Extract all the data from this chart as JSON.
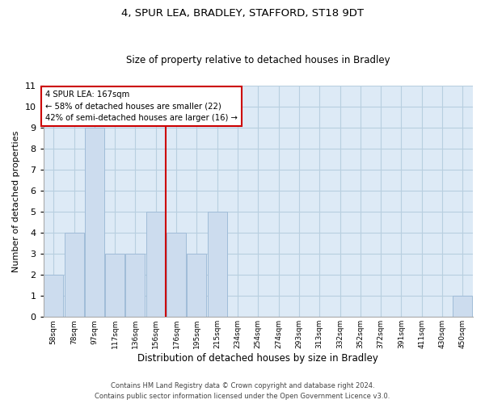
{
  "title_line1": "4, SPUR LEA, BRADLEY, STAFFORD, ST18 9DT",
  "title_line2": "Size of property relative to detached houses in Bradley",
  "xlabel": "Distribution of detached houses by size in Bradley",
  "ylabel": "Number of detached properties",
  "categories": [
    "58sqm",
    "78sqm",
    "97sqm",
    "117sqm",
    "136sqm",
    "156sqm",
    "176sqm",
    "195sqm",
    "215sqm",
    "234sqm",
    "254sqm",
    "274sqm",
    "293sqm",
    "313sqm",
    "332sqm",
    "352sqm",
    "372sqm",
    "391sqm",
    "411sqm",
    "430sqm",
    "450sqm"
  ],
  "values": [
    2,
    4,
    9,
    3,
    3,
    5,
    4,
    3,
    5,
    0,
    0,
    0,
    0,
    0,
    0,
    0,
    0,
    0,
    0,
    0,
    1
  ],
  "bar_color": "#ccdcee",
  "bar_edge_color": "#a0bcd8",
  "grid_color": "#b8cfe0",
  "background_color": "#ddeaf6",
  "ref_line_index": 5.5,
  "ref_line_color": "#cc0000",
  "annotation_text": "4 SPUR LEA: 167sqm\n← 58% of detached houses are smaller (22)\n42% of semi-detached houses are larger (16) →",
  "annotation_box_color": "#cc0000",
  "ylim": [
    0,
    11
  ],
  "yticks": [
    0,
    1,
    2,
    3,
    4,
    5,
    6,
    7,
    8,
    9,
    10,
    11
  ],
  "footer_line1": "Contains HM Land Registry data © Crown copyright and database right 2024.",
  "footer_line2": "Contains public sector information licensed under the Open Government Licence v3.0."
}
